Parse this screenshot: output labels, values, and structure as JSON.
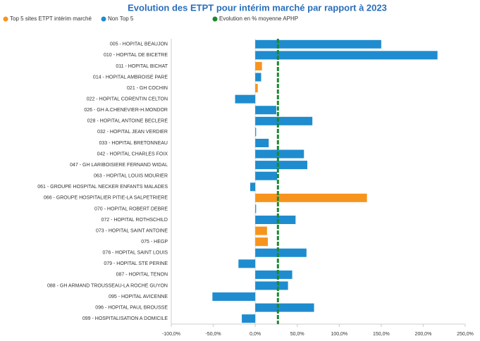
{
  "chart_data": {
    "type": "hbar",
    "title": "Evolution des ETPT pour intérim marché par rapport à 2023",
    "categories": [
      "005 - HOPITAL BEAUJON",
      "010 - HOPITAL DE BICETRE",
      "011 - HOPITAL BICHAT",
      "014 - HOPITAL AMBROISE PARE",
      "021 - GH COCHIN",
      "022 - HOPITAL CORENTIN CELTON",
      "026 - GH A.CHENEVIER-H.MONDOR",
      "028 - HOPITAL ANTOINE BECLERE",
      "032 - HOPITAL JEAN VERDIER",
      "033 - HOPITAL BRETONNEAU",
      "042 - HOPITAL CHARLES FOIX",
      "047 - GH LARIBOISIERE FERNAND WIDAL",
      "063 - HOPITAL LOUIS MOURIER",
      "061 - GROUPE HOSPITAL NECKER ENFANTS MALADES",
      "066 - GROUPE HOSPITALIER PITIE-LA SALPETRIERE",
      "070 - HOPITAL ROBERT DEBRE",
      "072 - HOPITAL ROTHSCHILD",
      "073 - HOPITAL SAINT ANTOINE",
      "075 - HEGP",
      "076 - HOPITAL SAINT LOUIS",
      "079 - HOPITAL STE PERINE",
      "087 - HOPITAL TENON",
      "088 - GH ARMAND TROUSSEAU-LA ROCHE GUYON",
      "095 - HOPITAL AVICENNE",
      "096 - HOPITAL PAUL BROUSSE",
      "099 - HOSPITALISATION A DOMICILE"
    ],
    "series": [
      {
        "name": "Top 5 sites ETPT intérim marché",
        "color": "#f7941d",
        "values": [
          null,
          null,
          8,
          null,
          3,
          null,
          null,
          null,
          null,
          null,
          null,
          null,
          null,
          null,
          133,
          null,
          null,
          14,
          15,
          null,
          null,
          null,
          null,
          null,
          null,
          null
        ]
      },
      {
        "name": "Non Top 5",
        "color": "#1f8ccf",
        "values": [
          150,
          217,
          null,
          7,
          null,
          -24,
          25,
          68,
          1,
          16,
          58,
          62,
          26,
          -6,
          null,
          1,
          48,
          null,
          null,
          61,
          -20,
          44,
          39,
          -51,
          70,
          -16
        ]
      }
    ],
    "reference_line": {
      "name": "Evolution en % moyenne APHP",
      "color": "#1a8a2e",
      "value": 27
    },
    "xlim": [
      -100,
      250
    ],
    "xticks": [
      {
        "value": -100,
        "label": "-100,0%"
      },
      {
        "value": -50,
        "label": "-50,0%"
      },
      {
        "value": 0,
        "label": "0,0%"
      },
      {
        "value": 50,
        "label": "50,0%"
      },
      {
        "value": 100,
        "label": "100,0%"
      },
      {
        "value": 150,
        "label": "150,0%"
      },
      {
        "value": 200,
        "label": "200,0%"
      },
      {
        "value": 250,
        "label": "250,0%"
      }
    ]
  }
}
